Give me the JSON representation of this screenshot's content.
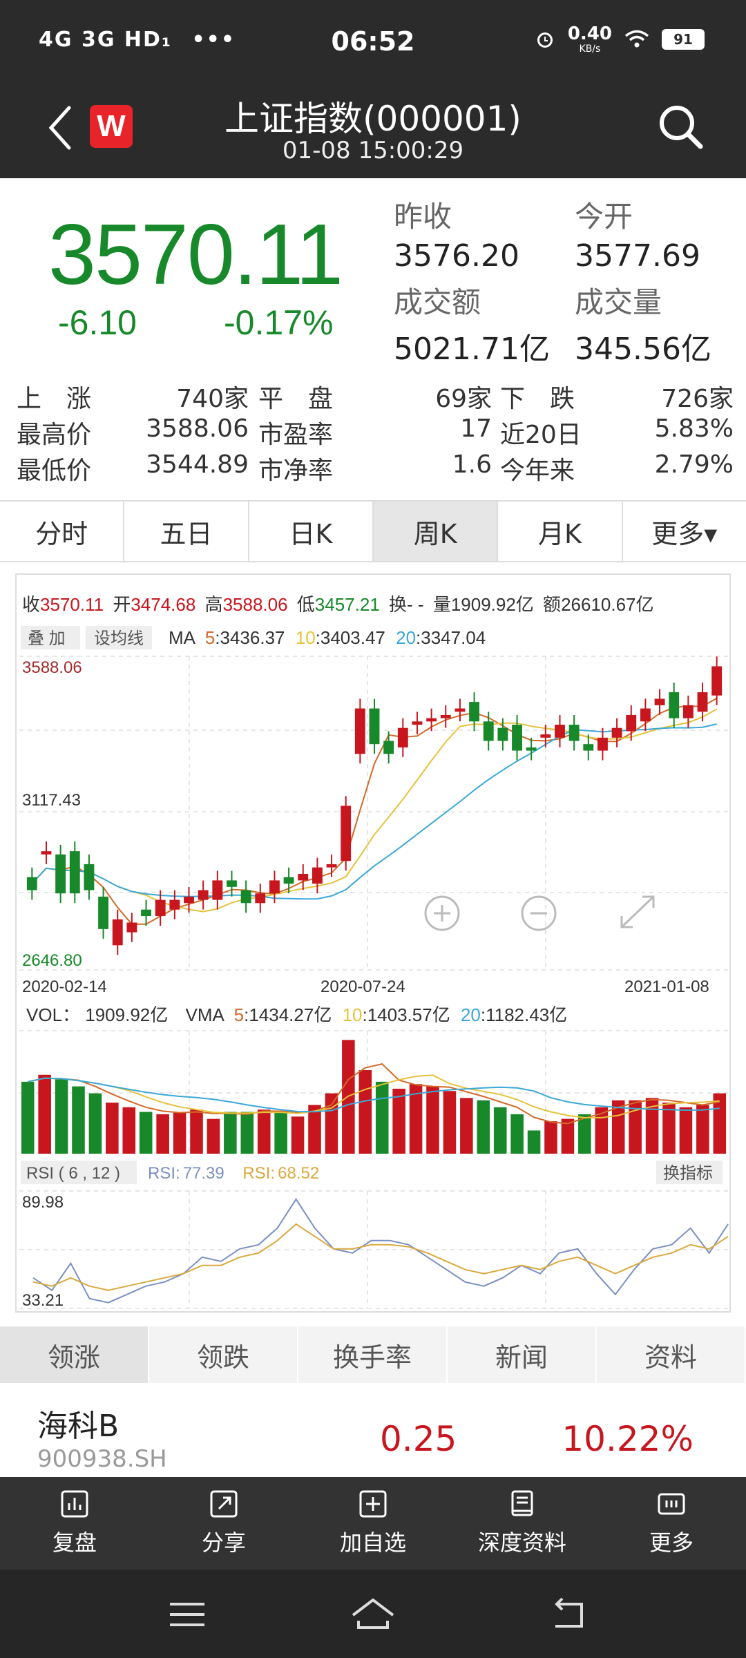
{
  "status_bar": {
    "network": "4G 3G HD₁",
    "dots": "•••",
    "time": "06:52",
    "speed": "0.40",
    "speed_unit": "KB/s",
    "battery": "91"
  },
  "title_bar": {
    "title": "上证指数(000001)",
    "subtitle": "01-08 15:00:29",
    "logo": "W"
  },
  "quote": {
    "price": "3570.11",
    "change": "-6.10",
    "change_pct": "-0.17%",
    "prev_close_label": "昨收",
    "prev_close": "3576.20",
    "open_label": "今开",
    "open": "3577.69",
    "turnover_label": "成交额",
    "turnover": "5021.71亿",
    "volume_label": "成交量",
    "volume": "345.56亿",
    "down_color": "#17892a",
    "up_color": "#c7161e"
  },
  "stats": {
    "rows": [
      {
        "l1": "上　涨",
        "v1": "740家",
        "l2": "平　盘",
        "v2": "69家",
        "l3": "下　跌",
        "v3": "726家"
      },
      {
        "l1": "最高价",
        "v1": "3588.06",
        "l2": "市盈率",
        "v2": "17",
        "l3": "近20日",
        "v3": "5.83%"
      },
      {
        "l1": "最低价",
        "v1": "3544.89",
        "l2": "市净率",
        "v2": "1.6",
        "l3": "今年来",
        "v3": "2.79%"
      }
    ]
  },
  "period_tabs": [
    "分时",
    "五日",
    "日K",
    "周K",
    "月K",
    "更多▾"
  ],
  "chart_info": {
    "close_label": "收",
    "close": "3570.11",
    "open_label": "开",
    "open": "3474.68",
    "high_label": "高",
    "high": "3588.06",
    "low_label": "低",
    "low": "3457.21",
    "turnover_rate_label": "换",
    "turnover_rate": "- -",
    "vol_label": "量",
    "vol": "1909.92亿",
    "amount_label": "额",
    "amount": "26610.67亿",
    "overlay_btn": "叠 加",
    "ma_set_btn": "设均线",
    "ma_label": "MA",
    "ma5_label": "5",
    "ma5": "3436.37",
    "ma10_label": "10",
    "ma10": "3403.47",
    "ma20_label": "20",
    "ma20": "3347.04",
    "y_top": "3588.06",
    "y_mid": "3117.43",
    "y_bot": "2646.80",
    "x_left": "2020-02-14",
    "x_mid": "2020-07-24",
    "x_right": "2021-01-08",
    "vol_line_label": "VOL：",
    "vol_value": "1909.92亿",
    "vma_label": "VMA",
    "vma5_label": "5",
    "vma5": "1434.27亿",
    "vma10_label": "10",
    "vma10": "1403.57亿",
    "vma20_label": "20",
    "vma20": "1182.43亿",
    "rsi_btn": "RSI ( 6 , 12 )",
    "rsi1_label": "RSI:",
    "rsi1": "77.39",
    "rsi2_label": "RSI:",
    "rsi2": "68.52",
    "switch_btn": "换指标",
    "rsi_top": "89.98",
    "rsi_bot": "33.21",
    "colors": {
      "up": "#c7161e",
      "down": "#17892a",
      "ma5": "#d36a2a",
      "ma10": "#e6c23a",
      "ma20": "#3aa8d8",
      "rsi1": "#7a8fc4",
      "rsi2": "#d9a93c"
    }
  },
  "chart_data": {
    "type": "candlestick",
    "x_range": [
      "2020-02-14",
      "2021-01-08"
    ],
    "ylim": [
      2646.8,
      3588.06
    ],
    "candles": [
      {
        "o": 2920,
        "c": 2880
      },
      {
        "o": 2990,
        "c": 3000
      },
      {
        "o": 2990,
        "c": 2870
      },
      {
        "o": 3000,
        "c": 2870
      },
      {
        "o": 2960,
        "c": 2880
      },
      {
        "o": 2860,
        "c": 2760
      },
      {
        "o": 2710,
        "c": 2790
      },
      {
        "o": 2750,
        "c": 2780
      },
      {
        "o": 2820,
        "c": 2800
      },
      {
        "o": 2800,
        "c": 2850
      },
      {
        "o": 2820,
        "c": 2850
      },
      {
        "o": 2840,
        "c": 2860
      },
      {
        "o": 2850,
        "c": 2880
      },
      {
        "o": 2850,
        "c": 2910
      },
      {
        "o": 2910,
        "c": 2890
      },
      {
        "o": 2880,
        "c": 2840
      },
      {
        "o": 2840,
        "c": 2870
      },
      {
        "o": 2870,
        "c": 2910
      },
      {
        "o": 2920,
        "c": 2900
      },
      {
        "o": 2910,
        "c": 2930
      },
      {
        "o": 2900,
        "c": 2950
      },
      {
        "o": 2950,
        "c": 2960
      },
      {
        "o": 2970,
        "c": 3140
      },
      {
        "o": 3300,
        "c": 3440
      },
      {
        "o": 3440,
        "c": 3330
      },
      {
        "o": 3340,
        "c": 3300
      },
      {
        "o": 3320,
        "c": 3380
      },
      {
        "o": 3390,
        "c": 3400
      },
      {
        "o": 3400,
        "c": 3410
      },
      {
        "o": 3410,
        "c": 3420
      },
      {
        "o": 3430,
        "c": 3440
      },
      {
        "o": 3460,
        "c": 3400
      },
      {
        "o": 3400,
        "c": 3340
      },
      {
        "o": 3380,
        "c": 3340
      },
      {
        "o": 3390,
        "c": 3310
      },
      {
        "o": 3320,
        "c": 3310
      },
      {
        "o": 3350,
        "c": 3360
      },
      {
        "o": 3350,
        "c": 3390
      },
      {
        "o": 3390,
        "c": 3340
      },
      {
        "o": 3330,
        "c": 3310
      },
      {
        "o": 3310,
        "c": 3350
      },
      {
        "o": 3350,
        "c": 3380
      },
      {
        "o": 3370,
        "c": 3420
      },
      {
        "o": 3400,
        "c": 3440
      },
      {
        "o": 3450,
        "c": 3470
      },
      {
        "o": 3490,
        "c": 3410
      },
      {
        "o": 3410,
        "c": 3450
      },
      {
        "o": 3430,
        "c": 3490
      },
      {
        "o": 3480,
        "c": 3570
      }
    ],
    "rsi6": [
      48,
      42,
      55,
      38,
      36,
      40,
      44,
      46,
      50,
      58,
      56,
      62,
      64,
      72,
      86,
      72,
      62,
      60,
      66,
      66,
      64,
      58,
      52,
      46,
      44,
      48,
      54,
      50,
      60,
      62,
      50,
      40,
      52,
      62,
      64,
      72,
      60,
      74
    ],
    "rsi12": [
      46,
      44,
      48,
      44,
      42,
      44,
      46,
      48,
      50,
      54,
      54,
      58,
      60,
      66,
      74,
      68,
      62,
      62,
      64,
      64,
      63,
      60,
      56,
      52,
      50,
      52,
      54,
      52,
      56,
      58,
      54,
      50,
      54,
      58,
      60,
      64,
      62,
      68
    ]
  },
  "vol_data": [
    62,
    68,
    64,
    58,
    52,
    44,
    40,
    36,
    34,
    36,
    38,
    30,
    36,
    36,
    38,
    36,
    32,
    42,
    52,
    98,
    72,
    62,
    56,
    60,
    58,
    54,
    48,
    46,
    40,
    34,
    20,
    28,
    30,
    34,
    40,
    46,
    46,
    48,
    44,
    40,
    42,
    52
  ],
  "list_tabs": [
    "领涨",
    "领跌",
    "换手率",
    "新闻",
    "资料"
  ],
  "list_row": {
    "name": "海科B",
    "code": "900938.SH",
    "price": "0.25",
    "pct": "10.22%"
  },
  "toolbar": [
    {
      "label": "复盘",
      "icon": "chart-icon"
    },
    {
      "label": "分享",
      "icon": "share-icon"
    },
    {
      "label": "加自选",
      "icon": "add-icon"
    },
    {
      "label": "深度资料",
      "icon": "book-icon"
    },
    {
      "label": "更多",
      "icon": "more-icon"
    }
  ]
}
